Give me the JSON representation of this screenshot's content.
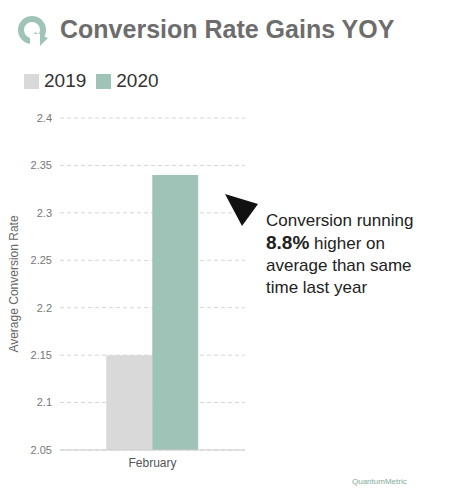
{
  "chart_data": {
    "type": "bar",
    "title": "Conversion Rate Gains YOY",
    "y_label": "Average Conversion Rate",
    "categories": [
      "February"
    ],
    "series": [
      {
        "name": "2019",
        "color": "#d9d9d9",
        "values": [
          2.15
        ]
      },
      {
        "name": "2020",
        "color": "#9fc3b6",
        "values": [
          2.34
        ]
      }
    ],
    "ylim": [
      2.05,
      2.4
    ],
    "yticks": [
      2.05,
      2.1,
      2.15,
      2.2,
      2.25,
      2.3,
      2.35,
      2.4
    ],
    "grid": true,
    "legend": "top-left",
    "annotations": [
      "Conversion running 8.8% higher on average than same time last year",
      "QuantumMetric"
    ]
  }
}
